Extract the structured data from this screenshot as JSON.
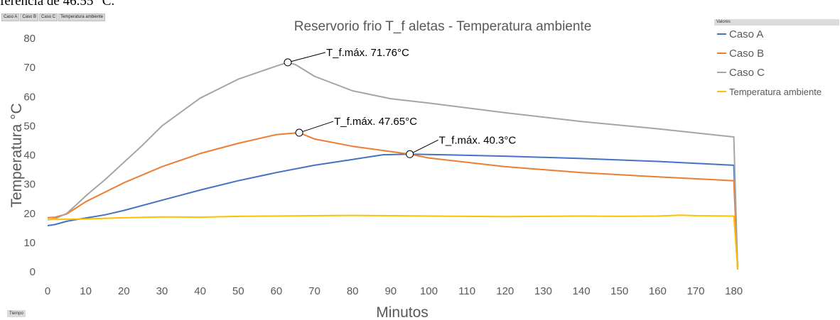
{
  "top_text": "ferencia de 46.55 °C.",
  "field_buttons": [
    "Caso A",
    "Caso B",
    "Caso C",
    "Temperatura ambiente"
  ],
  "values_header": "Valores",
  "tiempo_button": "Tiempo",
  "chart_data": {
    "type": "line",
    "title": "Reservorio frio T_f aletas - Temperatura ambiente",
    "xlabel": "Minutos",
    "ylabel": "Temperatura °C",
    "xlim": [
      0,
      181
    ],
    "ylim": [
      0,
      80
    ],
    "xticks": [
      0,
      10,
      20,
      30,
      40,
      50,
      60,
      70,
      80,
      90,
      100,
      110,
      120,
      130,
      140,
      150,
      160,
      170,
      180
    ],
    "yticks": [
      0,
      10,
      20,
      30,
      40,
      50,
      60,
      70,
      80
    ],
    "grid": false,
    "legend_position": "right",
    "series": [
      {
        "name": "Caso A",
        "color": "#4472c4",
        "x": [
          0,
          2,
          5,
          8,
          10,
          15,
          20,
          30,
          40,
          50,
          60,
          70,
          80,
          88,
          95,
          100,
          120,
          140,
          160,
          180,
          181
        ],
        "y": [
          15.8,
          16.2,
          17.3,
          18.0,
          18.4,
          19.5,
          21.0,
          24.5,
          28.0,
          31.2,
          34.0,
          36.5,
          38.5,
          40.1,
          40.3,
          40.2,
          39.6,
          38.8,
          37.8,
          36.5,
          0.8
        ]
      },
      {
        "name": "Caso B",
        "color": "#ed7d31",
        "x": [
          0,
          2,
          5,
          10,
          20,
          30,
          40,
          50,
          60,
          66,
          70,
          80,
          95,
          100,
          120,
          140,
          160,
          180,
          181
        ],
        "y": [
          18.5,
          18.7,
          19.8,
          24.0,
          30.5,
          36.0,
          40.5,
          44.0,
          47.0,
          47.65,
          45.5,
          43.0,
          40.3,
          39.0,
          36.0,
          34.0,
          32.5,
          31.2,
          0.8
        ]
      },
      {
        "name": "Caso C",
        "color": "#a5a5a5",
        "x": [
          0,
          2,
          5,
          8,
          10,
          15,
          20,
          25,
          30,
          40,
          50,
          60,
          63,
          65,
          70,
          80,
          90,
          100,
          120,
          140,
          160,
          180,
          181
        ],
        "y": [
          17.8,
          18.2,
          20.0,
          23.5,
          26.0,
          31.5,
          37.5,
          43.5,
          50.0,
          59.5,
          66.0,
          70.5,
          71.76,
          71.0,
          67.0,
          62.0,
          59.3,
          57.8,
          54.5,
          51.5,
          49.0,
          46.2,
          0.8
        ]
      },
      {
        "name": "Temperatura ambiente",
        "color": "#ffc000",
        "x": [
          0,
          5,
          10,
          20,
          30,
          40,
          50,
          60,
          70,
          80,
          90,
          100,
          110,
          120,
          130,
          140,
          150,
          160,
          166,
          170,
          180,
          181
        ],
        "y": [
          17.9,
          18.0,
          18.1,
          18.5,
          18.8,
          18.7,
          19.0,
          19.1,
          19.2,
          19.3,
          19.2,
          19.1,
          19.0,
          18.9,
          19.0,
          19.1,
          19.0,
          19.1,
          19.4,
          19.2,
          19.1,
          0.8
        ]
      }
    ],
    "annotations": [
      {
        "text": "T_f.máx.  71.76°C",
        "x": 63,
        "y": 71.76,
        "label_dx": 53,
        "label_dy": -14
      },
      {
        "text": "T_f.máx.  47.65°C",
        "x": 66,
        "y": 47.65,
        "label_dx": 48,
        "label_dy": -16
      },
      {
        "text": "T_f.máx.  40.3°C",
        "x": 95,
        "y": 40.3,
        "label_dx": 40,
        "label_dy": -20
      }
    ]
  }
}
